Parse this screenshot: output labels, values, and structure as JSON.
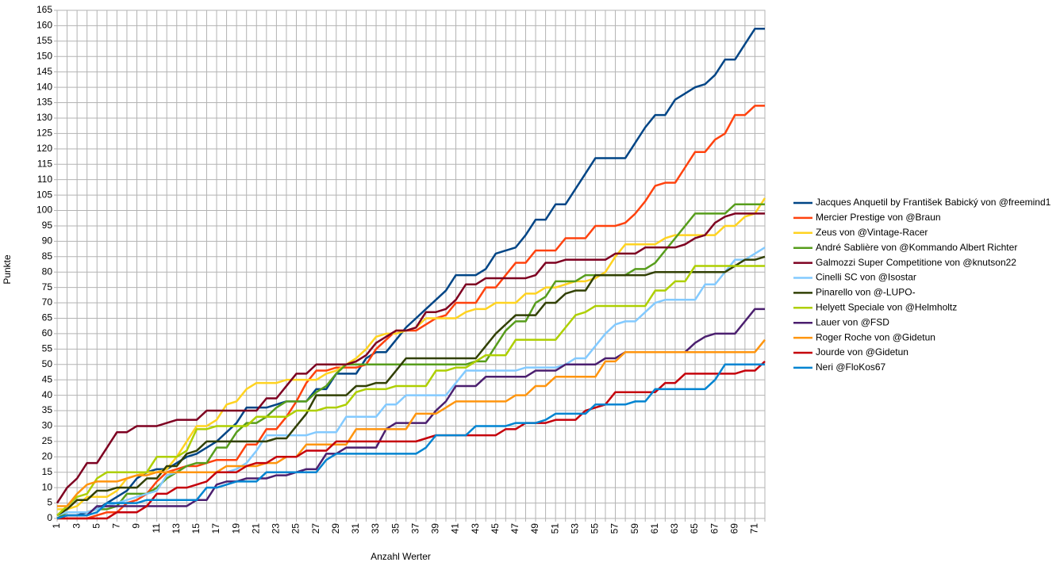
{
  "chart_data": {
    "type": "line",
    "x_label": "Anzahl Werter",
    "y_label": "Punkte",
    "categories": [
      1,
      null,
      3,
      null,
      5,
      null,
      7,
      null,
      9,
      null,
      11,
      null,
      13,
      null,
      15,
      null,
      17,
      null,
      19,
      null,
      21,
      null,
      23,
      null,
      25,
      null,
      27,
      null,
      29,
      null,
      31,
      null,
      33,
      null,
      35,
      null,
      37,
      null,
      39,
      null,
      41,
      null,
      43,
      null,
      45,
      null,
      47,
      null,
      49,
      null,
      51,
      null,
      53,
      null,
      55,
      null,
      57,
      null,
      59,
      null,
      61,
      null,
      63,
      null,
      65,
      null,
      67,
      null,
      69,
      null,
      71,
      null
    ],
    "ylim": [
      0,
      165
    ],
    "yticks": [
      0,
      5,
      10,
      15,
      20,
      25,
      30,
      35,
      40,
      45,
      50,
      55,
      60,
      65,
      70,
      75,
      80,
      85,
      90,
      95,
      100,
      105,
      110,
      115,
      120,
      125,
      130,
      135,
      140,
      145,
      150,
      155,
      160,
      165
    ],
    "grid": true,
    "legend": "right",
    "series": [
      {
        "name": "Jacques Anquetil by František Babický von @freemind1",
        "color": "#004586",
        "values": [
          0,
          1,
          1,
          2,
          3,
          5,
          7,
          9,
          13,
          15,
          16,
          16,
          18,
          20,
          21,
          23,
          25,
          28,
          31,
          36,
          36,
          36,
          37,
          38,
          38,
          38,
          42,
          42,
          47,
          47,
          47,
          52,
          54,
          54,
          58,
          62,
          65,
          68,
          71,
          74,
          79,
          79,
          79,
          81,
          86,
          87,
          88,
          92,
          97,
          97,
          102,
          102,
          107,
          112,
          117,
          117,
          117,
          117,
          122,
          127,
          131,
          131,
          136,
          138,
          140,
          141,
          144,
          149,
          149,
          154,
          159,
          159
        ]
      },
      {
        "name": "Mercier Prestige von @Braun",
        "color": "#ff420e",
        "values": [
          0,
          0,
          0,
          0,
          1,
          2,
          2,
          5,
          6,
          8,
          12,
          15,
          16,
          17,
          17,
          18,
          19,
          19,
          19,
          24,
          24,
          29,
          29,
          33,
          38,
          44,
          48,
          48,
          49,
          49,
          49,
          50,
          55,
          58,
          61,
          61,
          61,
          63,
          65,
          66,
          70,
          70,
          70,
          75,
          75,
          79,
          83,
          83,
          87,
          87,
          87,
          91,
          91,
          91,
          95,
          95,
          95,
          96,
          99,
          103,
          108,
          109,
          109,
          114,
          119,
          119,
          123,
          125,
          131,
          131,
          134,
          134
        ]
      },
      {
        "name": "Zeus von @Vintage-Racer",
        "color": "#ffd320",
        "values": [
          3,
          3,
          4,
          7,
          7,
          7,
          9,
          13,
          14,
          15,
          15,
          16,
          20,
          25,
          30,
          30,
          32,
          37,
          38,
          42,
          44,
          44,
          44,
          45,
          45,
          45,
          45,
          47,
          48,
          50,
          52,
          55,
          59,
          60,
          60,
          61,
          62,
          65,
          65,
          65,
          65,
          67,
          68,
          68,
          70,
          70,
          70,
          73,
          73,
          75,
          75,
          76,
          77,
          77,
          78,
          80,
          85,
          89,
          89,
          89,
          89,
          91,
          92,
          92,
          92,
          92,
          92,
          95,
          95,
          98,
          99,
          104
        ]
      },
      {
        "name": "André Sablière von @Kommando Albert Richter",
        "color": "#579d1c",
        "values": [
          0,
          2,
          2,
          2,
          3,
          3,
          4,
          8,
          8,
          8,
          10,
          13,
          15,
          17,
          18,
          18,
          23,
          23,
          28,
          31,
          31,
          33,
          36,
          38,
          38,
          38,
          41,
          43,
          47,
          50,
          50,
          50,
          50,
          50,
          50,
          50,
          50,
          50,
          50,
          50,
          50,
          50,
          51,
          51,
          56,
          61,
          64,
          64,
          70,
          72,
          77,
          77,
          77,
          79,
          79,
          79,
          79,
          79,
          81,
          81,
          83,
          87,
          91,
          95,
          99,
          99,
          99,
          99,
          102,
          102,
          102,
          102
        ]
      },
      {
        "name": "Galmozzi Super Competitione von @knutson22",
        "color": "#7e0021",
        "values": [
          5,
          10,
          13,
          18,
          18,
          23,
          28,
          28,
          30,
          30,
          30,
          31,
          32,
          32,
          32,
          35,
          35,
          35,
          35,
          35,
          35,
          39,
          39,
          43,
          47,
          47,
          50,
          50,
          50,
          50,
          51,
          53,
          57,
          59,
          61,
          61,
          62,
          67,
          67,
          68,
          71,
          76,
          76,
          78,
          78,
          78,
          78,
          78,
          79,
          83,
          83,
          84,
          84,
          84,
          84,
          84,
          86,
          86,
          86,
          88,
          88,
          88,
          88,
          89,
          91,
          92,
          96,
          98,
          99,
          99,
          99,
          99
        ]
      },
      {
        "name": "Cinelli SC von @Isostar",
        "color": "#83caff",
        "values": [
          1,
          2,
          2,
          2,
          3,
          4,
          5,
          6,
          7,
          8,
          9,
          14,
          15,
          15,
          15,
          15,
          15,
          15,
          16,
          18,
          22,
          27,
          27,
          27,
          27,
          27,
          28,
          28,
          28,
          33,
          33,
          33,
          33,
          37,
          37,
          40,
          40,
          40,
          40,
          40,
          44,
          48,
          48,
          48,
          48,
          48,
          48,
          49,
          49,
          49,
          49,
          50,
          52,
          52,
          56,
          60,
          63,
          64,
          64,
          67,
          70,
          71,
          71,
          71,
          71,
          76,
          76,
          80,
          84,
          84,
          86,
          88
        ]
      },
      {
        "name": "Pinarello von @-LUPO-",
        "color": "#314004",
        "values": [
          1,
          3,
          6,
          6,
          9,
          9,
          10,
          10,
          10,
          13,
          13,
          17,
          17,
          21,
          22,
          25,
          25,
          25,
          25,
          25,
          25,
          25,
          26,
          26,
          30,
          34,
          40,
          40,
          40,
          40,
          43,
          43,
          44,
          44,
          48,
          52,
          52,
          52,
          52,
          52,
          52,
          52,
          52,
          56,
          60,
          63,
          66,
          66,
          66,
          70,
          70,
          73,
          74,
          74,
          79,
          79,
          79,
          79,
          79,
          79,
          80,
          80,
          80,
          80,
          80,
          80,
          80,
          80,
          82,
          84,
          84,
          85
        ]
      },
      {
        "name": "Helyett Speciale von @Helmholtz",
        "color": "#aecf00",
        "values": [
          1,
          4,
          7,
          8,
          13,
          15,
          15,
          15,
          15,
          15,
          20,
          20,
          20,
          22,
          29,
          29,
          30,
          30,
          30,
          30,
          33,
          33,
          33,
          33,
          35,
          35,
          35,
          36,
          36,
          37,
          41,
          42,
          42,
          42,
          43,
          43,
          43,
          43,
          48,
          48,
          49,
          49,
          51,
          53,
          53,
          53,
          58,
          58,
          58,
          58,
          58,
          62,
          66,
          67,
          69,
          69,
          69,
          69,
          69,
          69,
          74,
          74,
          77,
          77,
          82,
          82,
          82,
          82,
          82,
          82,
          82,
          82
        ]
      },
      {
        "name": "Lauer von @FSD",
        "color": "#4b1f6f",
        "values": [
          0,
          1,
          1,
          1,
          4,
          4,
          4,
          4,
          4,
          4,
          4,
          4,
          4,
          4,
          6,
          6,
          11,
          12,
          12,
          13,
          13,
          13,
          14,
          14,
          15,
          16,
          16,
          21,
          21,
          23,
          23,
          23,
          23,
          29,
          31,
          31,
          31,
          31,
          35,
          38,
          43,
          43,
          43,
          46,
          46,
          46,
          46,
          46,
          48,
          48,
          48,
          50,
          50,
          50,
          50,
          52,
          52,
          54,
          54,
          54,
          54,
          54,
          54,
          54,
          57,
          59,
          60,
          60,
          60,
          64,
          68,
          68
        ]
      },
      {
        "name": "Roger Roche von @Gidetun",
        "color": "#ff950e",
        "values": [
          4,
          4,
          8,
          11,
          12,
          12,
          12,
          13,
          14,
          14,
          15,
          15,
          15,
          15,
          15,
          15,
          15,
          17,
          17,
          17,
          17,
          18,
          18,
          20,
          20,
          24,
          24,
          24,
          24,
          24,
          29,
          29,
          29,
          29,
          29,
          29,
          34,
          34,
          34,
          36,
          38,
          38,
          38,
          38,
          38,
          38,
          40,
          40,
          43,
          43,
          46,
          46,
          46,
          46,
          46,
          51,
          51,
          54,
          54,
          54,
          54,
          54,
          54,
          54,
          54,
          54,
          54,
          54,
          54,
          54,
          54,
          58
        ]
      },
      {
        "name": "Jourde von @Gidetun",
        "color": "#c5000b",
        "values": [
          0,
          0,
          0,
          0,
          0,
          0,
          2,
          2,
          2,
          4,
          8,
          8,
          10,
          10,
          11,
          12,
          15,
          15,
          15,
          17,
          18,
          18,
          20,
          20,
          20,
          22,
          22,
          22,
          25,
          25,
          25,
          25,
          25,
          25,
          25,
          25,
          25,
          26,
          27,
          27,
          27,
          27,
          27,
          27,
          27,
          29,
          29,
          31,
          31,
          31,
          32,
          32,
          32,
          35,
          36,
          37,
          41,
          41,
          41,
          41,
          41,
          44,
          44,
          47,
          47,
          47,
          47,
          47,
          47,
          48,
          48,
          51
        ]
      },
      {
        "name": "Neri @FloKos67",
        "color": "#0084d1",
        "values": [
          0,
          1,
          1,
          1,
          2,
          5,
          5,
          5,
          5,
          6,
          6,
          6,
          6,
          6,
          6,
          10,
          10,
          11,
          12,
          12,
          12,
          15,
          15,
          15,
          15,
          15,
          15,
          19,
          21,
          21,
          21,
          21,
          21,
          21,
          21,
          21,
          21,
          23,
          27,
          27,
          27,
          27,
          30,
          30,
          30,
          30,
          31,
          31,
          31,
          32,
          34,
          34,
          34,
          34,
          37,
          37,
          37,
          37,
          38,
          38,
          42,
          42,
          42,
          42,
          42,
          42,
          45,
          50,
          50,
          50,
          50,
          50
        ]
      }
    ]
  }
}
